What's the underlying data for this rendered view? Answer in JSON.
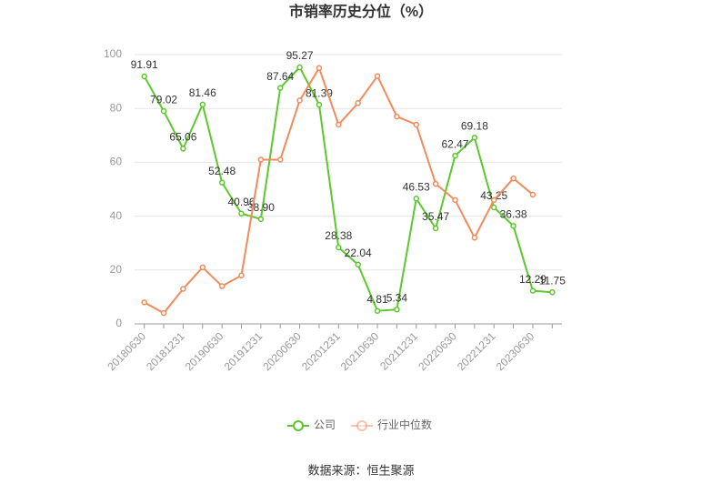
{
  "chart_data": {
    "type": "line",
    "title": "市销率历史分位（%）",
    "categories": [
      "20180630",
      null,
      "20181231",
      null,
      "20190630",
      null,
      "20191231",
      null,
      "20200630",
      null,
      "20201231",
      null,
      "20210630",
      null,
      "20211231",
      null,
      "20220630",
      null,
      "20221231",
      null,
      "20230630",
      null
    ],
    "series": [
      {
        "name": "公司",
        "color": "#5cc82e",
        "values": [
          91.91,
          79.02,
          65.06,
          81.46,
          52.48,
          40.96,
          38.9,
          87.64,
          95.27,
          81.39,
          28.38,
          22.04,
          4.81,
          5.34,
          46.53,
          35.47,
          62.47,
          69.18,
          43.25,
          36.38,
          12.29,
          11.75
        ],
        "value_labels": [
          "91.91",
          "79.02",
          "65.06",
          "81.46",
          "52.48",
          "40.96",
          "38.90",
          "87.64",
          "95.27",
          "81.39",
          "28.38",
          "22.04",
          "4.81",
          "5.34",
          "46.53",
          "35.47",
          "62.47",
          "69.18",
          "43.25",
          "36.38",
          "12.29",
          "11.75"
        ]
      },
      {
        "name": "行业中位数",
        "color": "#f28b5b",
        "values": [
          8,
          4,
          13,
          21,
          14,
          18,
          61,
          61,
          83,
          95,
          74,
          82,
          92,
          77,
          74,
          52,
          46,
          32,
          46,
          54,
          48,
          null
        ]
      }
    ],
    "ylim": [
      0,
      100
    ],
    "yticks": [
      0,
      20,
      40,
      60,
      80,
      100
    ],
    "grid": true,
    "source": "数据来源：恒生聚源"
  }
}
